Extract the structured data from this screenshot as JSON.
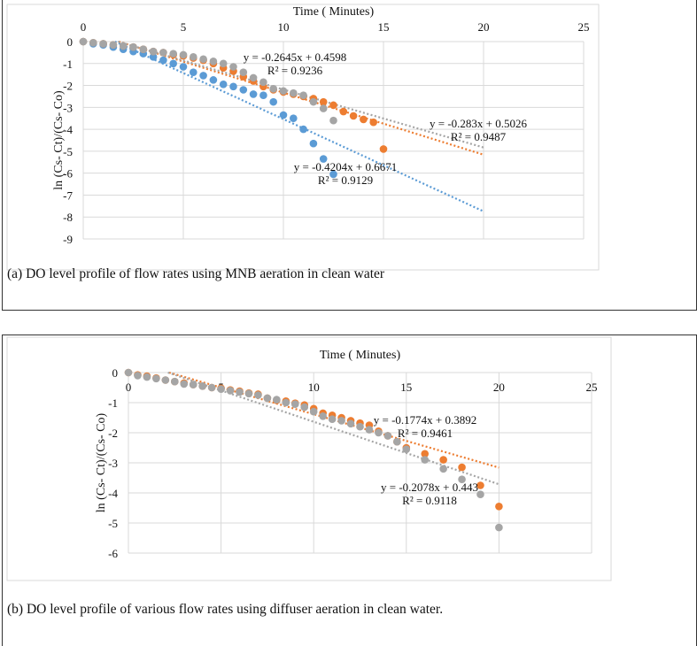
{
  "colors": {
    "blue": "#5b9bd5",
    "orange": "#ed7d31",
    "gray": "#a5a5a5",
    "grid": "#d9d9d9"
  },
  "captions": {
    "a": "(a) DO level profile of flow rates using MNB aeration in clean water",
    "b": "(b) DO level profile of various flow rates using diffuser aeration in clean water."
  },
  "chart_data": [
    {
      "type": "scatter",
      "xlabel": "Time ( Minutes)",
      "ylabel": "ln (Cs- Ct)/(Cs- Co)",
      "xlim": [
        0,
        25
      ],
      "ylim": [
        -9,
        0
      ],
      "xticks": [
        "0",
        "5",
        "10",
        "15",
        "20",
        "25"
      ],
      "yticks": [
        "0",
        "-1",
        "-2",
        "-3",
        "-4",
        "-5",
        "-6",
        "-7",
        "-8",
        "-9"
      ],
      "grid": true,
      "series": [
        {
          "name": "blue",
          "color": "#5b9bd5",
          "x_step": 0.5,
          "values": [
            0,
            -0.1,
            -0.15,
            -0.25,
            -0.35,
            -0.45,
            -0.55,
            -0.7,
            -0.85,
            -1.0,
            -1.15,
            -1.4,
            -1.55,
            -1.75,
            -1.95,
            -2.05,
            -2.2,
            -2.4,
            -2.45,
            -2.75,
            -3.35,
            -3.5,
            -4.0,
            -4.65,
            -5.35,
            -6.05
          ],
          "trend": {
            "slope": -0.4204,
            "intercept": 0.6671,
            "x_end": 20,
            "equation": "y = -0.4204x + 0.6671",
            "r2": "R² = 0.9129"
          }
        },
        {
          "name": "orange",
          "color": "#ed7d31",
          "x_step": 0.5,
          "values": [
            0,
            -0.05,
            -0.1,
            -0.15,
            -0.2,
            -0.25,
            -0.35,
            -0.45,
            -0.5,
            -0.6,
            -0.65,
            -0.75,
            -0.85,
            -1.0,
            -1.2,
            -1.35,
            -1.6,
            -1.8,
            -2.05,
            -2.2,
            -2.3,
            -2.4,
            -2.5,
            -2.6,
            -2.75,
            -2.9,
            -3.19,
            -3.39,
            -3.55,
            -3.68,
            -4.9
          ],
          "trend": {
            "slope": -0.283,
            "intercept": 0.5026,
            "x_end": 20,
            "equation": "y = -0.283x + 0.5026",
            "r2": "R² = 0.9487"
          }
        },
        {
          "name": "gray",
          "color": "#a5a5a5",
          "x_step": 0.5,
          "values": [
            0,
            -0.05,
            -0.1,
            -0.15,
            -0.2,
            -0.25,
            -0.35,
            -0.45,
            -0.5,
            -0.55,
            -0.6,
            -0.7,
            -0.8,
            -0.9,
            -1.0,
            -1.15,
            -1.4,
            -1.65,
            -1.85,
            -2.15,
            -2.25,
            -2.35,
            -2.45,
            -2.75,
            -3.05,
            -3.6
          ],
          "trend": {
            "slope": -0.2645,
            "intercept": 0.4598,
            "x_end": 20,
            "equation": "y = -0.2645x + 0.4598",
            "r2": "R² = 0.9236"
          }
        }
      ]
    },
    {
      "type": "scatter",
      "xlabel": "Time ( Minutes)",
      "ylabel": "ln (Cs- Ct)/(Cs- Co)",
      "xlim": [
        0,
        25
      ],
      "ylim": [
        -6,
        0
      ],
      "xticks": [
        "0",
        "5",
        "10",
        "15",
        "20",
        "25"
      ],
      "yticks": [
        "0",
        "-1",
        "-2",
        "-3",
        "-4",
        "-5",
        "-6"
      ],
      "grid": true,
      "series": [
        {
          "name": "orange",
          "color": "#ed7d31",
          "x": [
            0,
            0.5,
            1,
            1.5,
            2,
            2.5,
            3,
            3.5,
            4,
            4.5,
            5,
            5.5,
            6,
            6.5,
            7,
            7.5,
            8,
            8.5,
            9,
            9.5,
            10,
            10.5,
            11,
            11.5,
            12,
            12.5,
            13,
            13.5,
            14,
            14.5,
            15,
            16,
            17,
            18,
            19,
            20
          ],
          "values": [
            0,
            -0.08,
            -0.12,
            -0.18,
            -0.25,
            -0.3,
            -0.35,
            -0.4,
            -0.45,
            -0.5,
            -0.52,
            -0.58,
            -0.62,
            -0.68,
            -0.72,
            -0.85,
            -0.92,
            -0.95,
            -1.02,
            -1.08,
            -1.2,
            -1.35,
            -1.42,
            -1.5,
            -1.6,
            -1.68,
            -1.75,
            -1.95,
            -2.1,
            -2.3,
            -2.5,
            -2.7,
            -2.9,
            -3.15,
            -3.75,
            -4.45
          ],
          "trend": {
            "slope": -0.1774,
            "intercept": 0.3892,
            "x_end": 20,
            "equation": "y = -0.1774x + 0.3892",
            "r2": "R² = 0.9461"
          }
        },
        {
          "name": "gray",
          "color": "#a5a5a5",
          "x": [
            0,
            0.5,
            1,
            1.5,
            2,
            2.5,
            3,
            3.5,
            4,
            4.5,
            5,
            5.5,
            6,
            6.5,
            7,
            7.5,
            8,
            8.5,
            9,
            9.5,
            10,
            10.5,
            11,
            11.5,
            12,
            12.5,
            13,
            13.5,
            14,
            14.5,
            15,
            16,
            17,
            18,
            19,
            20
          ],
          "values": [
            0,
            -0.1,
            -0.15,
            -0.2,
            -0.25,
            -0.3,
            -0.38,
            -0.4,
            -0.45,
            -0.5,
            -0.55,
            -0.6,
            -0.65,
            -0.7,
            -0.75,
            -0.85,
            -0.9,
            -1.0,
            -1.05,
            -1.15,
            -1.3,
            -1.45,
            -1.55,
            -1.6,
            -1.7,
            -1.8,
            -1.9,
            -2.0,
            -2.1,
            -2.3,
            -2.55,
            -2.9,
            -3.2,
            -3.55,
            -4.05,
            -5.15
          ],
          "trend": {
            "slope": -0.2078,
            "intercept": 0.443,
            "x_end": 20,
            "equation": "y = -0.2078x + 0.443",
            "r2": "R² = 0.9118"
          }
        }
      ]
    }
  ]
}
